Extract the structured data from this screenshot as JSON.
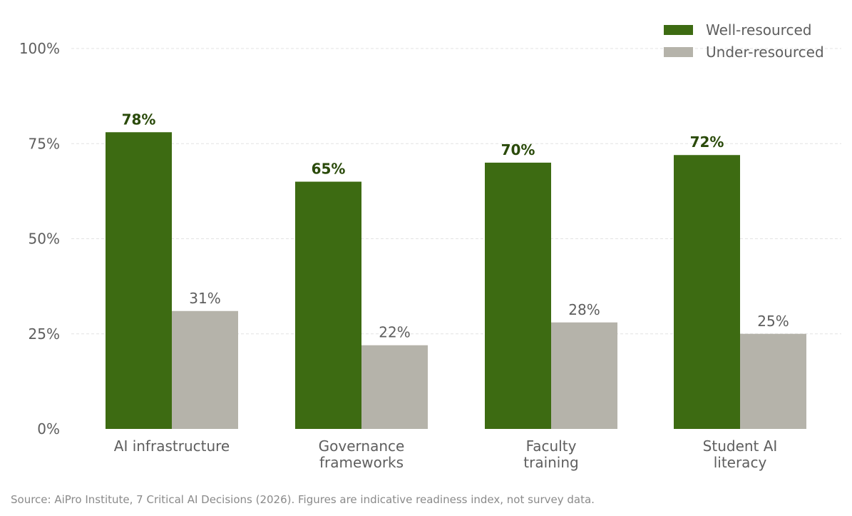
{
  "chart_data": {
    "type": "bar",
    "categories": [
      [
        "AI infrastructure"
      ],
      [
        "Governance",
        "frameworks"
      ],
      [
        "Faculty",
        "training"
      ],
      [
        "Student AI",
        "literacy"
      ]
    ],
    "series": [
      {
        "name": "Well-resourced",
        "values": [
          78,
          65,
          70,
          72
        ],
        "color": "#3d6b12",
        "label_color": "#2a4a0a",
        "label_weight": "bold"
      },
      {
        "name": "Under-resourced",
        "values": [
          31,
          22,
          28,
          25
        ],
        "color": "#b5b3aa",
        "label_color": "#5e5e5e",
        "label_weight": "normal"
      }
    ],
    "value_suffix": "%",
    "ylim": [
      0,
      100
    ],
    "yticks": [
      0,
      25,
      50,
      75,
      100
    ],
    "ytick_labels": [
      "0%",
      "25%",
      "50%",
      "75%",
      "100%"
    ],
    "xlabel": "",
    "ylabel": "",
    "grid": true,
    "legend_position": "top-right"
  },
  "source_note": "Source: AiPro Institute, 7 Critical AI Decisions (2026). Figures are indicative readiness index, not survey data.",
  "colors": {
    "text": "#5e5e5e",
    "grid": "#e3e3e3",
    "note": "#8a8a8a"
  }
}
